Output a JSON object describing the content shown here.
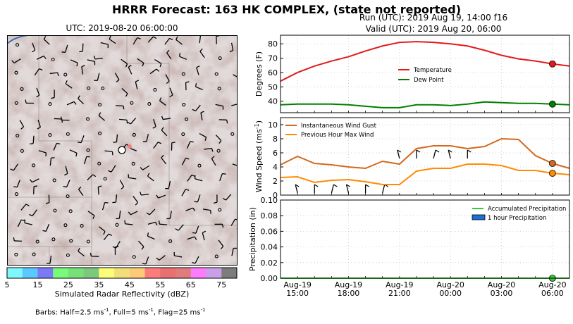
{
  "suptitle": "HRRR Forecast: 163 HK COMPLEX, (state not reported)",
  "map": {
    "title": "UTC: 2019-08-20 06:00:00",
    "colorbar_label": "Simulated Radar Reflectivity (dBZ)",
    "colorbar_ticks": [
      "5",
      "15",
      "25",
      "35",
      "45",
      "55",
      "65",
      "75"
    ],
    "colorbar_colors": [
      "#7ff7ff",
      "#5bc8ff",
      "#7a7af7",
      "#78fb78",
      "#77e077",
      "#7cc87c",
      "#fcfc78",
      "#f3de7a",
      "#fcca78",
      "#fc7c7c",
      "#e87070",
      "#e07c7c",
      "#fc7cfc",
      "#c8a0e8",
      "#7c7c7c"
    ],
    "barb_note_prefix": "Barbs: Half=2.5 ms",
    "barb_note_mid1": ", Full=5 ms",
    "barb_note_mid2": ", Flag=25 ms",
    "barb_note_exp": "-1"
  },
  "run_label": "Run (UTC): 2019 Aug 19, 14:00 f16",
  "valid_label": "Valid (UTC): 2019 Aug 20, 06:00",
  "chart_data": [
    {
      "type": "line",
      "title": "",
      "ylabel": "Degrees (F)",
      "ylim": [
        32,
        86
      ],
      "yticks": [
        40,
        50,
        60,
        70,
        80
      ],
      "grid": true,
      "legend_location": "center-right",
      "series": [
        {
          "name": "Temperature",
          "color": "#e31a1c",
          "x": [
            14,
            15,
            16,
            17,
            18,
            19,
            20,
            21,
            22,
            23,
            24,
            25,
            26,
            27,
            28,
            29,
            30,
            31
          ],
          "values": [
            54,
            60,
            64.5,
            68,
            71,
            75,
            78.5,
            81,
            81.5,
            81,
            80,
            78.5,
            75.5,
            72,
            69.5,
            68,
            66,
            64.5
          ]
        },
        {
          "name": "Dew Point",
          "color": "#008000",
          "x": [
            14,
            15,
            16,
            17,
            18,
            19,
            20,
            21,
            22,
            23,
            24,
            25,
            26,
            27,
            28,
            29,
            30,
            31
          ],
          "values": [
            37.5,
            38,
            38,
            38,
            37.5,
            36.5,
            35.5,
            35.5,
            37.5,
            37.5,
            37,
            38,
            39.5,
            39,
            38.5,
            38.5,
            38,
            37.5
          ]
        }
      ],
      "valid_marker": {
        "x": 30,
        "values": [
          66,
          38
        ]
      }
    },
    {
      "type": "line",
      "title": "",
      "ylabel": "Wind Speed (ms",
      "ylabel_exp": "-1",
      "ylabel_suffix": ")",
      "ylim": [
        0,
        11
      ],
      "yticks": [
        0,
        2,
        4,
        6,
        8,
        10
      ],
      "grid": true,
      "legend_location": "top-left",
      "series": [
        {
          "name": "Instantaneous Wind Gust",
          "color": "#d2691e",
          "x": [
            14,
            15,
            16,
            17,
            18,
            19,
            20,
            21,
            22,
            23,
            24,
            25,
            26,
            27,
            28,
            29,
            30,
            31
          ],
          "values": [
            4.3,
            5.5,
            4.5,
            4.3,
            4.0,
            3.8,
            4.8,
            4.4,
            6.6,
            7.0,
            7.0,
            6.6,
            6.9,
            8.0,
            7.9,
            5.6,
            4.5,
            3.8
          ]
        },
        {
          "name": "Previous Hour Max Wind",
          "color": "#ff8c00",
          "x": [
            14,
            15,
            16,
            17,
            18,
            19,
            20,
            21,
            22,
            23,
            24,
            25,
            26,
            27,
            28,
            29,
            30,
            31
          ],
          "values": [
            2.5,
            2.6,
            1.8,
            2.1,
            2.2,
            1.9,
            1.5,
            1.5,
            3.4,
            3.8,
            3.8,
            4.4,
            4.4,
            4.2,
            3.5,
            3.5,
            3.1,
            2.9
          ]
        }
      ],
      "valid_marker": {
        "x": 30,
        "values": [
          4.5,
          3.1
        ]
      }
    },
    {
      "type": "line",
      "title": "",
      "ylabel": "Precipitation (in)",
      "ylim": [
        0,
        0.1
      ],
      "yticks": [
        "0.00",
        "0.02",
        "0.04",
        "0.06",
        "0.08",
        "0.10"
      ],
      "grid": true,
      "legend_location": "top-right",
      "series": [
        {
          "name": "Accumulated Precipitation",
          "color": "#32cd32",
          "x": [
            14,
            31
          ],
          "values": [
            0,
            0
          ]
        },
        {
          "name": "1 hour Precipitation",
          "color": "#1e6fd9",
          "type": "bar",
          "x": [],
          "values": []
        }
      ],
      "valid_marker": {
        "x": 30,
        "values": [
          0
        ]
      }
    }
  ],
  "x_axis": {
    "tick_x": [
      15,
      18,
      21,
      24,
      27,
      30
    ],
    "tick_line1": [
      "Aug-19",
      "Aug-19",
      "Aug-19",
      "Aug-20",
      "Aug-20",
      "Aug-20"
    ],
    "tick_line2": [
      "15:00",
      "18:00",
      "21:00",
      "00:00",
      "03:00",
      "06:00"
    ]
  }
}
